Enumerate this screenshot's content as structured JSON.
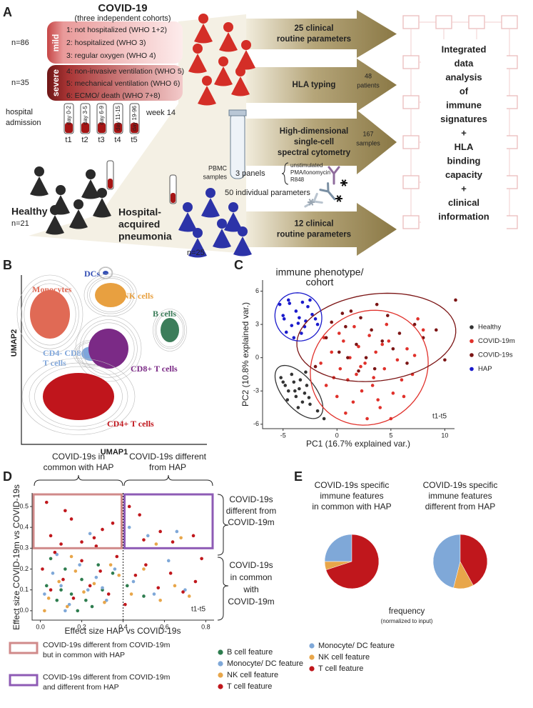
{
  "panel_labels": [
    "A",
    "B",
    "C",
    "D",
    "E"
  ],
  "panel_a": {
    "title": "COVID-19",
    "subtitle": "(three independent cohorts)",
    "mild": {
      "n": "n=86",
      "label": "mild",
      "groups": [
        "1: not hospitalized (WHO 1+2)",
        "2: hospitalized (WHO 3)",
        "3: regular oxygen (WHO 4)"
      ]
    },
    "severe": {
      "n": "n=35",
      "label": "severe",
      "groups": [
        "4: non-invasive ventilation (WHO 5)",
        "5: mechanical ventilation (WHO 6)",
        "6: ECMO/ death (WHO 7+8)"
      ]
    },
    "admission": [
      "hospital",
      "admission"
    ],
    "timepoints": [
      {
        "day": "day 0-2",
        "t": "t1"
      },
      {
        "day": "day 3-5",
        "t": "t2"
      },
      {
        "day": "day 6-9",
        "t": "t3"
      },
      {
        "day": "day 11-15",
        "t": "t4"
      },
      {
        "day": "day 19-96",
        "t": "t5"
      }
    ],
    "week": "week 14",
    "healthy": {
      "label": "Healthy",
      "n": "n=21"
    },
    "hap": {
      "label": [
        "Hospital-",
        "acquired",
        "pneumonia"
      ],
      "n": "n=25"
    },
    "arrows": [
      [
        "25 clinical",
        "routine parameters"
      ],
      [
        "HLA typing"
      ],
      [
        "High-dimensional",
        "single-cell",
        "spectral cytometry"
      ],
      [
        "12 clinical",
        "routine parameters"
      ]
    ],
    "patients": [
      "48",
      "patients"
    ],
    "samples": [
      "167",
      "samples"
    ],
    "pbmc": [
      "PBMC",
      "samples"
    ],
    "panels": "3 panels",
    "stimuli": [
      "unstimulated",
      "PMA/Ionomycin",
      "R848"
    ],
    "parameters": "50 individual parameters",
    "integrated": [
      "Integrated",
      "data",
      "analysis",
      "of",
      "immune",
      "signatures",
      "+",
      "HLA",
      "binding",
      "capacity",
      "+",
      "clinical",
      "information"
    ]
  },
  "panel_b": {
    "x_label": "UMAP1",
    "y_label": "UMAP2",
    "clusters": [
      {
        "name": [
          "Monocytes"
        ],
        "color": "#e06a55"
      },
      {
        "name": [
          "DCs"
        ],
        "color": "#3550b5"
      },
      {
        "name": [
          "NK cells"
        ],
        "color": "#e8a040"
      },
      {
        "name": [
          "B cells"
        ],
        "color": "#3c7d5a"
      },
      {
        "name": [
          "CD4- CD8-",
          "T cells"
        ],
        "color": "#7fa6db"
      },
      {
        "name": [
          "CD8+ T cells"
        ],
        "color": "#7b2a86"
      },
      {
        "name": [
          "CD4+ T cells"
        ],
        "color": "#c0151c"
      }
    ]
  },
  "chart_data": [
    {
      "type": "scatter",
      "title": [
        "immune phenotype/",
        "cohort"
      ],
      "x_label": "PC1 (16.7% explained var.)",
      "y_label": "PC2 (10.8% explained var.)",
      "annotation": "t1-t5",
      "xlim": [
        -6.9,
        10.9
      ],
      "ylim": [
        -6.4,
        7
      ],
      "xticks": [
        -5,
        0,
        5,
        10
      ],
      "yticks": [
        -6,
        -3,
        0,
        3,
        6
      ],
      "ellipses": true,
      "legend": "right",
      "series": [
        {
          "name": "Healthy",
          "color": "#333333",
          "x": [
            -5.2,
            -4.8,
            -4.5,
            -4.0,
            -3.8,
            -3.5,
            -3.2,
            -3.0,
            -2.8,
            -2.5,
            -4.6,
            -4.2,
            -3.6,
            -3.4,
            -2.6,
            -1.2,
            -1.8,
            -5.0,
            -3.9,
            -2.9
          ],
          "values": [
            -1.8,
            -2.5,
            -3.0,
            -2.2,
            -3.5,
            -2.8,
            -4.0,
            -3.2,
            -2.5,
            -4.2,
            -3.8,
            -1.5,
            -4.5,
            -2.0,
            -3.6,
            -5.5,
            -4.8,
            -2.2,
            -3.0,
            -1.3
          ]
        },
        {
          "name": "COVID-19m",
          "color": "#e0312b",
          "x": [
            -1.5,
            -1.0,
            -0.5,
            0.0,
            0.3,
            0.6,
            1.0,
            1.2,
            1.5,
            1.8,
            2.0,
            2.3,
            2.6,
            3.0,
            3.3,
            3.6,
            4.0,
            4.4,
            4.8,
            5.2,
            5.6,
            6.0,
            6.5,
            7.0,
            7.5,
            8.0,
            -1.2,
            0.8,
            1.6,
            2.8,
            3.8,
            4.6,
            5.0,
            0.2,
            2.2,
            3.4,
            6.2,
            7.2,
            -0.3,
            4.2
          ],
          "values": [
            -0.5,
            -2.5,
            0.5,
            -3.5,
            -1.0,
            1.5,
            -2.0,
            0.0,
            -4.0,
            -1.5,
            1.0,
            -3.0,
            -0.5,
            2.0,
            -2.5,
            0.5,
            -4.5,
            -1.0,
            1.5,
            -3.2,
            -0.2,
            -2.0,
            0.8,
            -1.5,
            3.5,
            2.5,
            1.8,
            -5.0,
            2.8,
            -5.5,
            -3.8,
            3.0,
            -5.5,
            2.2,
            -0.8,
            -1.8,
            -3.5,
            0.2,
            -1.8,
            1.2
          ]
        },
        {
          "name": "COVID-19s",
          "color": "#7b1414",
          "x": [
            -1.0,
            -0.5,
            0.2,
            0.8,
            1.3,
            1.8,
            2.2,
            2.7,
            3.2,
            3.7,
            4.2,
            4.7,
            5.2,
            5.8,
            6.5,
            7.2,
            8.0,
            9.2,
            10.0,
            11.0,
            0.5,
            2.0,
            3.5,
            1.0,
            -2.0
          ],
          "values": [
            1.8,
            3.2,
            0.5,
            2.8,
            4.2,
            1.2,
            3.6,
            0.0,
            2.5,
            4.8,
            1.5,
            3.8,
            0.8,
            2.2,
            -0.5,
            3.0,
            1.8,
            2.5,
            -0.2,
            5.2,
            4.0,
            -1.2,
            -1.0,
            0.0,
            -0.8
          ]
        },
        {
          "name": "HAP",
          "color": "#1a1acc",
          "x": [
            -5.3,
            -4.9,
            -4.5,
            -4.2,
            -3.8,
            -3.5,
            -3.2,
            -3.0,
            -2.7,
            -2.3,
            -4.7,
            -4.0,
            -3.6,
            -2.9,
            -2.0,
            -4.4,
            -3.3,
            -2.5,
            -5.0,
            -1.8
          ],
          "values": [
            4.8,
            3.5,
            5.2,
            2.9,
            4.2,
            3.6,
            5.0,
            2.8,
            4.6,
            3.9,
            2.3,
            1.8,
            3.1,
            3.3,
            3.5,
            4.9,
            2.2,
            5.2,
            3.8,
            3.0
          ]
        }
      ]
    },
    {
      "type": "scatter",
      "x_label": "Effect size HAP vs COVID-19s",
      "y_label": "Effect size COVID-19m vs COVID-19s",
      "annotation": "t1-t5",
      "xlim": [
        -0.04,
        0.84
      ],
      "ylim": [
        -0.045,
        0.565
      ],
      "xticks": [
        {
          "value": 0,
          "label": "0.0"
        },
        0.2,
        0.4,
        0.6,
        0.8
      ],
      "yticks": [
        {
          "value": 0,
          "label": "0.0"
        },
        0.1,
        0.2,
        0.3,
        0.4,
        0.5
      ],
      "x_threshold": 0.4,
      "y_threshold": 0.3,
      "highlights": [
        {
          "label": [
            "COVID-19s different from COVID-19m",
            "but in common with HAP"
          ],
          "color": "#d08a8a"
        },
        {
          "label": [
            "COVID-19s different from COVID-19m",
            "and different from HAP"
          ],
          "color": "#8e5bb5"
        }
      ],
      "annotations": {
        "top_left": [
          "COVID-19s in",
          "common with HAP"
        ],
        "top_right": [
          "COVID-19s different",
          "from HAP"
        ],
        "right_top": [
          "COVID-19s",
          "different from",
          "COVID-19m"
        ],
        "right_bottom": [
          "COVID-19s",
          "in common",
          "with",
          "COVID-19m"
        ]
      },
      "series": [
        {
          "name": "B cell feature",
          "color": "#2e7d4f",
          "x": [
            0.03,
            0.08,
            0.12,
            0.15,
            0.2,
            0.25,
            0.3,
            0.35,
            0.05,
            0.18,
            0.42,
            0.5,
            0.1,
            0.28,
            0.22
          ],
          "values": [
            0.12,
            0.05,
            0.2,
            0.08,
            0.15,
            0.02,
            0.1,
            0.18,
            0.25,
            0.0,
            0.12,
            0.07,
            0.1,
            0.22,
            0.05
          ]
        },
        {
          "name": "Monocyte/ DC feature",
          "color": "#7fa8d8",
          "x": [
            0.02,
            0.06,
            0.1,
            0.14,
            0.19,
            0.23,
            0.27,
            0.32,
            0.36,
            0.45,
            0.55,
            0.62,
            0.7,
            0.24,
            0.43,
            0.52,
            0.66,
            0.12,
            0.3,
            0.08
          ],
          "values": [
            0.08,
            0.18,
            0.12,
            0.03,
            0.22,
            0.1,
            0.16,
            0.05,
            0.2,
            0.14,
            0.08,
            0.24,
            0.1,
            0.37,
            0.4,
            0.36,
            0.38,
            0.0,
            0.11,
            0.27
          ]
        },
        {
          "name": "NK cell feature",
          "color": "#e8a64a",
          "x": [
            0.04,
            0.09,
            0.13,
            0.17,
            0.21,
            0.26,
            0.31,
            0.38,
            0.44,
            0.5,
            0.58,
            0.65,
            0.72,
            0.15,
            0.34,
            0.56,
            0.68,
            0.02
          ],
          "values": [
            0.06,
            0.14,
            0.02,
            0.19,
            0.09,
            0.13,
            0.04,
            0.17,
            0.08,
            0.2,
            0.05,
            0.12,
            0.07,
            0.26,
            0.22,
            0.32,
            0.35,
            0.0
          ]
        },
        {
          "name": "T cell feature",
          "color": "#c0171c",
          "x": [
            0.01,
            0.05,
            0.07,
            0.11,
            0.16,
            0.2,
            0.24,
            0.29,
            0.33,
            0.37,
            0.41,
            0.46,
            0.51,
            0.57,
            0.63,
            0.69,
            0.75,
            0.78,
            0.03,
            0.15,
            0.26,
            0.05,
            0.12,
            0.2,
            0.27,
            0.35,
            0.43,
            0.5,
            0.58,
            0.74,
            0.1,
            0.3,
            0.48,
            0.64
          ],
          "values": [
            0.2,
            0.1,
            0.28,
            0.15,
            0.06,
            0.24,
            0.12,
            0.19,
            0.08,
            0.26,
            0.03,
            0.17,
            0.22,
            0.11,
            0.18,
            0.09,
            0.14,
            0.25,
            0.52,
            0.44,
            0.35,
            0.36,
            0.48,
            0.33,
            0.31,
            0.42,
            0.5,
            0.34,
            0.38,
            0.36,
            0.32,
            0.39,
            0.46,
            0.33
          ]
        }
      ]
    },
    {
      "type": "pie",
      "title": [
        "COVID-19s specific",
        "immune features",
        "in common with HAP"
      ],
      "categories": [
        "Monocyte/ DC feature",
        "NK cell feature",
        "T cell feature"
      ],
      "colors": [
        "#7fa8d8",
        "#e8a64a",
        "#c0171c"
      ],
      "values": [
        25,
        5,
        70
      ]
    },
    {
      "type": "pie",
      "title": [
        "COVID-19s specific",
        "immune features",
        "different from HAP"
      ],
      "categories": [
        "Monocyte/ DC feature",
        "NK cell feature",
        "T cell feature"
      ],
      "colors": [
        "#7fa8d8",
        "#e8a64a",
        "#c0171c"
      ],
      "values": [
        46,
        12,
        42
      ],
      "caption": [
        "frequency",
        "(normalized to input)"
      ]
    }
  ]
}
